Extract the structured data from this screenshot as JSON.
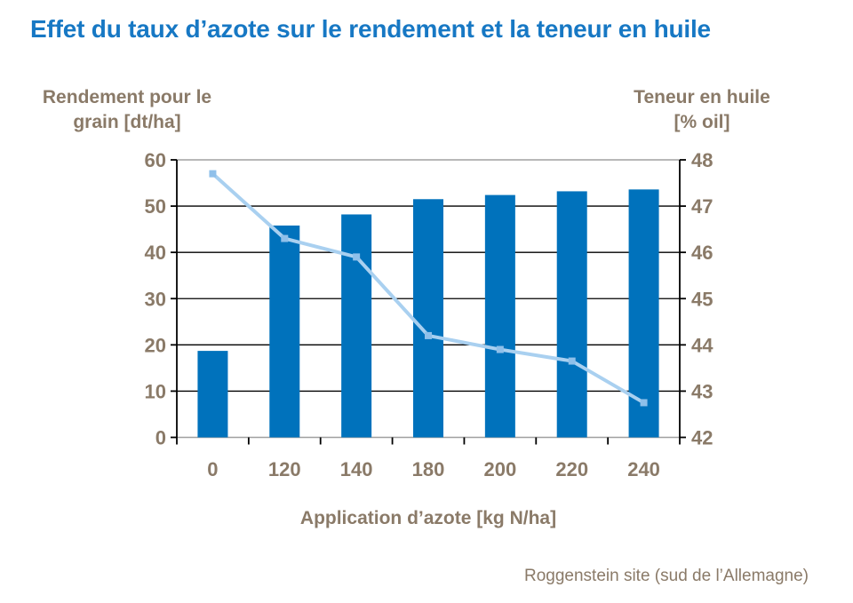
{
  "title": "Effet du taux d’azote sur le rendement et la teneur en huile",
  "left_axis_title": {
    "line1": "Rendement pour le",
    "line2": "grain [dt/ha]"
  },
  "right_axis_title": {
    "line1": "Teneur en huile",
    "line2": "[% oil]"
  },
  "footer": "Roggenstein site (sud de l’Allemagne)",
  "colors": {
    "title": "#1778C4",
    "bar": "#0072BC",
    "line": "#A9D0F0",
    "marker": "#8FC0EA",
    "axis_text": "#8A7A68",
    "grid": "#000000",
    "axis_line": "#000000",
    "frame": "#A0A0A0"
  },
  "chart_data": {
    "type": "bar",
    "subtype": "combo bar + line, dual axis",
    "categories": [
      "0",
      "120",
      "140",
      "180",
      "200",
      "220",
      "240"
    ],
    "xlabel": "Application d’azote [kg N/ha]",
    "grid": true,
    "legend": "none",
    "series": [
      {
        "name": "Rendement pour le grain [dt/ha]",
        "type": "bar",
        "axis": "left",
        "values": [
          18.7,
          45.8,
          48.2,
          51.5,
          52.4,
          53.2,
          53.6
        ]
      },
      {
        "name": "Teneur en huile [% oil]",
        "type": "line",
        "axis": "right",
        "values": [
          47.7,
          46.3,
          45.9,
          44.2,
          43.9,
          43.65,
          42.75
        ]
      }
    ],
    "left_axis": {
      "label": "Rendement pour le grain [dt/ha]",
      "min": 0,
      "max": 60,
      "ticks": [
        60,
        50,
        40,
        30,
        20,
        10,
        0
      ]
    },
    "right_axis": {
      "label": "Teneur en huile [% oil]",
      "min": 42,
      "max": 48,
      "ticks": [
        48,
        47,
        46,
        45,
        44,
        43,
        42
      ]
    }
  }
}
